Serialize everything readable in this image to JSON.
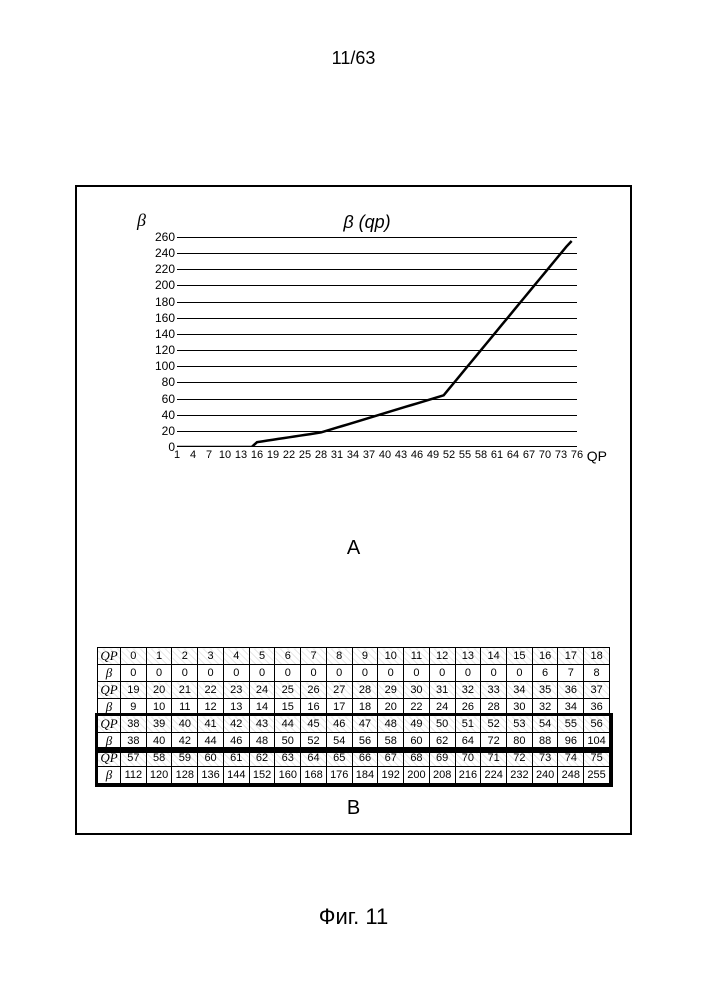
{
  "page_number": "11/63",
  "figure_caption": "Фиг. 11",
  "labels": {
    "A": "A",
    "B": "B"
  },
  "chart": {
    "type": "line",
    "title": "β (qp)",
    "y_axis_label": "β",
    "x_axis_label": "QP",
    "ylim": [
      0,
      260
    ],
    "ytick_step": 20,
    "yticks": [
      0,
      20,
      40,
      60,
      80,
      100,
      120,
      140,
      160,
      180,
      200,
      220,
      240,
      260
    ],
    "xticks": [
      1,
      4,
      7,
      10,
      13,
      16,
      19,
      22,
      25,
      28,
      31,
      34,
      37,
      40,
      43,
      46,
      49,
      52,
      55,
      58,
      61,
      64,
      67,
      70,
      73,
      76
    ],
    "line_color": "#000000",
    "grid_color": "#000000",
    "background_color": "#ffffff",
    "line_width": 2.5,
    "series_x": [
      0,
      1,
      2,
      3,
      4,
      5,
      6,
      7,
      8,
      9,
      10,
      11,
      12,
      13,
      14,
      15,
      16,
      17,
      18,
      19,
      20,
      21,
      22,
      23,
      24,
      25,
      26,
      27,
      28,
      29,
      30,
      31,
      32,
      33,
      34,
      35,
      36,
      37,
      38,
      39,
      40,
      41,
      42,
      43,
      44,
      45,
      46,
      47,
      48,
      49,
      50,
      51,
      52,
      53,
      54,
      55,
      56,
      57,
      58,
      59,
      60,
      61,
      62,
      63,
      64,
      65,
      66,
      67,
      68,
      69,
      70,
      71,
      72,
      73,
      74,
      75
    ],
    "series_y": [
      0,
      0,
      0,
      0,
      0,
      0,
      0,
      0,
      0,
      0,
      0,
      0,
      0,
      0,
      0,
      0,
      6,
      7,
      8,
      9,
      10,
      11,
      12,
      13,
      14,
      15,
      16,
      17,
      18,
      20,
      22,
      24,
      26,
      28,
      30,
      32,
      34,
      36,
      38,
      40,
      42,
      44,
      46,
      48,
      50,
      52,
      54,
      56,
      58,
      60,
      62,
      64,
      72,
      80,
      88,
      96,
      104,
      112,
      120,
      128,
      136,
      144,
      152,
      160,
      168,
      176,
      184,
      192,
      200,
      208,
      216,
      224,
      232,
      240,
      248,
      255
    ]
  },
  "table": {
    "row_label_qp": "QP",
    "row_label_beta": "β",
    "blocks": [
      {
        "qp": [
          0,
          1,
          2,
          3,
          4,
          5,
          6,
          7,
          8,
          9,
          10,
          11,
          12,
          13,
          14,
          15,
          16,
          17,
          18
        ],
        "beta": [
          0,
          0,
          0,
          0,
          0,
          0,
          0,
          0,
          0,
          0,
          0,
          0,
          0,
          0,
          0,
          0,
          6,
          7,
          8
        ],
        "bold": false
      },
      {
        "qp": [
          19,
          20,
          21,
          22,
          23,
          24,
          25,
          26,
          27,
          28,
          29,
          30,
          31,
          32,
          33,
          34,
          35,
          36,
          37
        ],
        "beta": [
          9,
          10,
          11,
          12,
          13,
          14,
          15,
          16,
          17,
          18,
          20,
          22,
          24,
          26,
          28,
          30,
          32,
          34,
          36
        ],
        "bold": false
      },
      {
        "qp": [
          38,
          39,
          40,
          41,
          42,
          43,
          44,
          45,
          46,
          47,
          48,
          49,
          50,
          51,
          52,
          53,
          54,
          55,
          56
        ],
        "beta": [
          38,
          40,
          42,
          44,
          46,
          48,
          50,
          52,
          54,
          56,
          58,
          60,
          62,
          64,
          72,
          80,
          88,
          96,
          104
        ],
        "bold": true
      },
      {
        "qp": [
          57,
          58,
          59,
          60,
          61,
          62,
          63,
          64,
          65,
          66,
          67,
          68,
          69,
          70,
          71,
          72,
          73,
          74,
          75
        ],
        "beta": [
          112,
          120,
          128,
          136,
          144,
          152,
          160,
          168,
          176,
          184,
          192,
          200,
          208,
          216,
          224,
          232,
          240,
          248,
          255
        ],
        "bold": true
      }
    ]
  }
}
